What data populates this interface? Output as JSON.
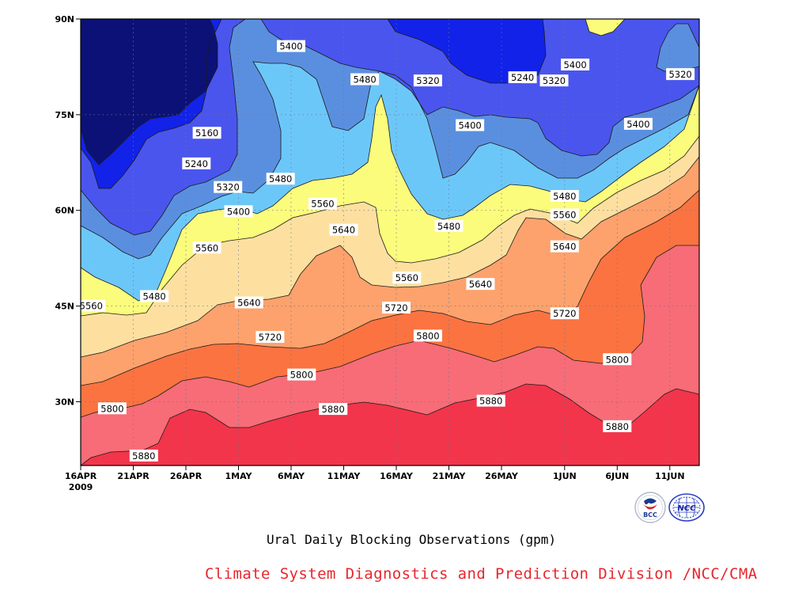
{
  "chart_data": {
    "type": "heatmap",
    "subtype": "filled-contour",
    "title": "Ural Daily Blocking Observations (gpm)",
    "xlabel": "",
    "ylabel": "",
    "x_ticks": [
      "16APR",
      "21APR",
      "26APR",
      "1MAY",
      "6MAY",
      "11MAY",
      "16MAY",
      "21MAY",
      "26MAY",
      "1JUN",
      "6JUN",
      "11JUN"
    ],
    "x_year_label": "2009",
    "x_range": [
      "2009-04-16",
      "2009-06-15"
    ],
    "y_ticks": [
      "30N",
      "45N",
      "60N",
      "75N",
      "90N"
    ],
    "y_range": [
      20,
      90
    ],
    "grid": true,
    "contour_levels": [
      5160,
      5240,
      5320,
      5400,
      5480,
      5560,
      5640,
      5720,
      5800,
      5880
    ],
    "fill_colors": [
      "#0c1177",
      "#1222e8",
      "#4a55ee",
      "#5a8fe0",
      "#6cc7f9",
      "#fbfb7c",
      "#fde0a0",
      "#fda26c",
      "#fb7341",
      "#f76c77",
      "#f2354b"
    ],
    "contour_labels": [
      {
        "text": "5400",
        "date": "2009-05-06",
        "lat": 85.7
      },
      {
        "text": "5480",
        "date": "2009-05-13",
        "lat": 80.5
      },
      {
        "text": "5320",
        "date": "2009-05-19",
        "lat": 80.3
      },
      {
        "text": "5240",
        "date": "2009-05-28",
        "lat": 80.8
      },
      {
        "text": "5320",
        "date": "2009-05-31",
        "lat": 80.3
      },
      {
        "text": "5400",
        "date": "2009-06-02",
        "lat": 82.8
      },
      {
        "text": "5320",
        "date": "2009-06-12",
        "lat": 81.3
      },
      {
        "text": "5400",
        "date": "2009-05-23",
        "lat": 73.3
      },
      {
        "text": "5400",
        "date": "2009-06-08",
        "lat": 73.5
      },
      {
        "text": "5160",
        "date": "2009-04-28",
        "lat": 72.1
      },
      {
        "text": "5240",
        "date": "2009-04-27",
        "lat": 67.3
      },
      {
        "text": "5320",
        "date": "2009-04-30",
        "lat": 63.6
      },
      {
        "text": "5480",
        "date": "2009-05-05",
        "lat": 64.9
      },
      {
        "text": "5400",
        "date": "2009-05-01",
        "lat": 59.8
      },
      {
        "text": "5560",
        "date": "2009-05-09",
        "lat": 61.0
      },
      {
        "text": "5480",
        "date": "2009-05-21",
        "lat": 57.5
      },
      {
        "text": "5480",
        "date": "2009-06-01",
        "lat": 62.2
      },
      {
        "text": "5560",
        "date": "2009-06-01",
        "lat": 59.3
      },
      {
        "text": "5640",
        "date": "2009-06-01",
        "lat": 54.3
      },
      {
        "text": "5640",
        "date": "2009-05-11",
        "lat": 56.9
      },
      {
        "text": "5560",
        "date": "2009-04-28",
        "lat": 54.1
      },
      {
        "text": "5560",
        "date": "2009-05-17",
        "lat": 49.4
      },
      {
        "text": "5640",
        "date": "2009-05-24",
        "lat": 48.4
      },
      {
        "text": "5480",
        "date": "2009-04-23",
        "lat": 46.5
      },
      {
        "text": "5560",
        "date": "2009-04-17",
        "lat": 45.0
      },
      {
        "text": "5640",
        "date": "2009-05-02",
        "lat": 45.5
      },
      {
        "text": "5720",
        "date": "2009-05-16",
        "lat": 44.7
      },
      {
        "text": "5720",
        "date": "2009-06-01",
        "lat": 43.8
      },
      {
        "text": "5720",
        "date": "2009-05-04",
        "lat": 40.1
      },
      {
        "text": "5800",
        "date": "2009-05-19",
        "lat": 40.3
      },
      {
        "text": "5800",
        "date": "2009-06-06",
        "lat": 36.6
      },
      {
        "text": "5800",
        "date": "2009-05-07",
        "lat": 34.2
      },
      {
        "text": "5800",
        "date": "2009-04-19",
        "lat": 28.9
      },
      {
        "text": "5880",
        "date": "2009-05-10",
        "lat": 28.8
      },
      {
        "text": "5880",
        "date": "2009-05-25",
        "lat": 30.1
      },
      {
        "text": "5880",
        "date": "2009-06-06",
        "lat": 26.1
      },
      {
        "text": "5880",
        "date": "2009-04-22",
        "lat": 21.5
      }
    ]
  },
  "footer": {
    "credit": "Climate System Diagnostics and Prediction Division /NCC/CMA",
    "logo_bcc_text": "BCC",
    "logo_ncc_text": "NCC"
  }
}
